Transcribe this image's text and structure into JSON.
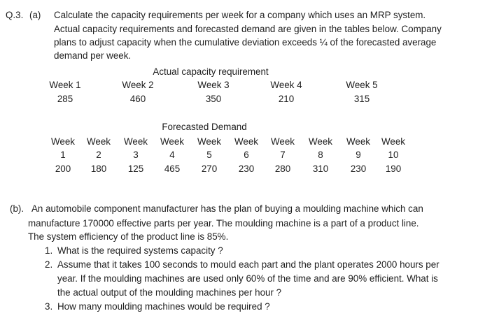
{
  "question": {
    "number": "Q.3.",
    "part_a": {
      "label": "(a)",
      "lines": [
        "Calculate the capacity requirements per week for a company which uses an MRP system.",
        "Actual capacity requirements and forecasted demand are given in the tables below. Company",
        "plans to adjust capacity when the cumulative deviation exceeds ¼ of the forecasted average",
        "demand per week."
      ]
    },
    "table_1": {
      "title": "Actual capacity requirement",
      "headers": [
        "Week 1",
        "Week 2",
        "Week 3",
        "Week 4",
        "Week 5"
      ],
      "values": [
        285,
        460,
        350,
        210,
        315
      ]
    },
    "table_2": {
      "title": "Forecasted Demand",
      "header_row_1": [
        "Week",
        "Week",
        "Week",
        "Week",
        "Week",
        "Week",
        "Week",
        "Week",
        "Week",
        "Week"
      ],
      "header_row_2": [
        1,
        2,
        3,
        4,
        5,
        6,
        7,
        8,
        9,
        10
      ],
      "values": [
        200,
        180,
        125,
        465,
        270,
        230,
        280,
        310,
        230,
        190
      ]
    },
    "part_b": {
      "label": "(b).",
      "lines": [
        "An automobile component manufacturer has the plan of buying a moulding machine which can",
        "manufacture 170000 effective parts per year. The moulding machine is a part of a product line.",
        "The system efficiency of the product line is 85%."
      ],
      "items": [
        {
          "number": "1.",
          "lines": [
            "What is the required systems capacity ?"
          ]
        },
        {
          "number": "2.",
          "lines": [
            "Assume that it takes 100 seconds to mould each part and the plant operates 2000 hours per",
            "year. If the moulding machines are used only 60% of the time and are 90% efficient. What is",
            "the actual output of the moulding machines per hour ?"
          ]
        },
        {
          "number": "3.",
          "lines": [
            "How many moulding machines would be required ?"
          ]
        }
      ]
    }
  }
}
